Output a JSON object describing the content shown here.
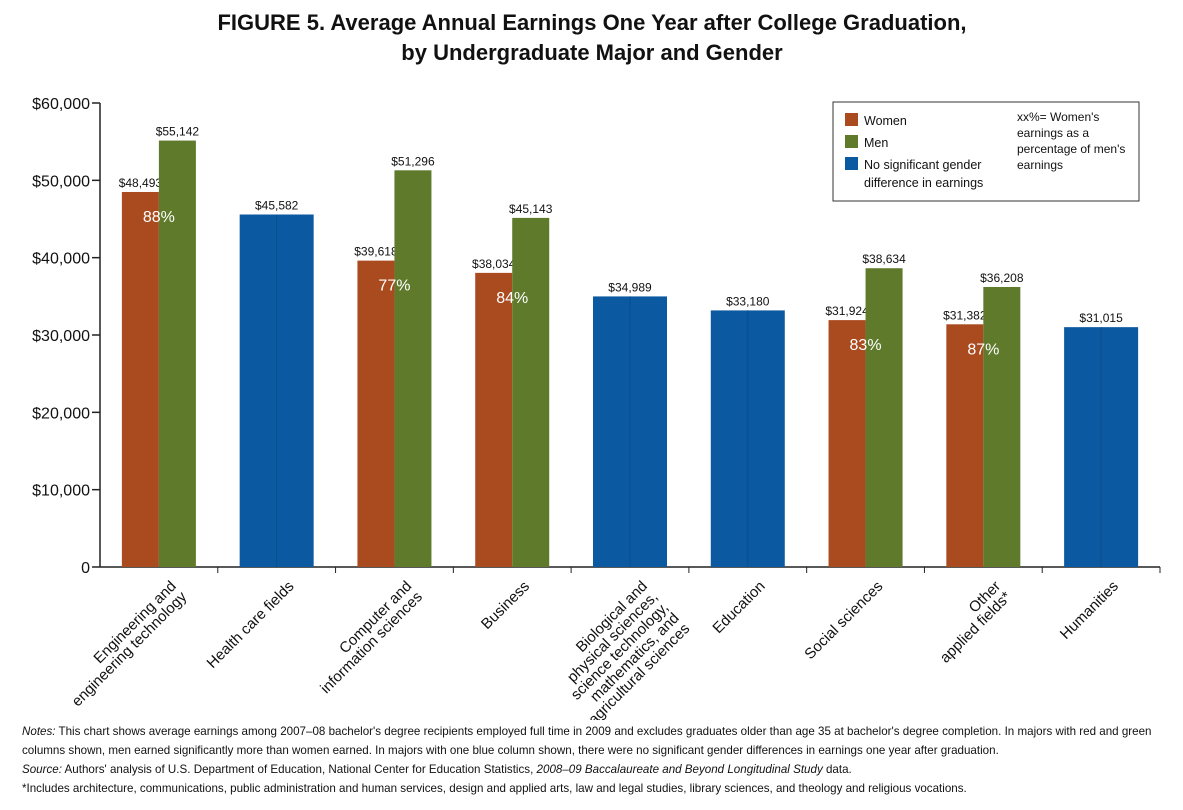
{
  "chart_data": {
    "type": "bar",
    "title": "FIGURE 5. Average Annual Earnings One Year after College Graduation,",
    "subtitle": "by Undergraduate Major and Gender",
    "categories": [
      "Engineering and\nengineering technology",
      "Health care fields",
      "Computer and\ninformation sciences",
      "Business",
      "Biological and\nphysical sciences,\nscience technology,\nmathematics, and\nagricultural sciences",
      "Education",
      "Social sciences",
      "Other\napplied fields*",
      "Humanities"
    ],
    "series": [
      {
        "name": "Women",
        "color": "#a94a1f",
        "values": [
          48493,
          null,
          39618,
          38034,
          null,
          null,
          31924,
          31382,
          null
        ],
        "value_labels": [
          "$48,493",
          null,
          "$39,618",
          "$38,034",
          null,
          null,
          "$31,924",
          "$31,382",
          null
        ]
      },
      {
        "name": "Men",
        "color": "#5f7a2b",
        "values": [
          55142,
          null,
          51296,
          45143,
          null,
          null,
          38634,
          36208,
          null
        ],
        "value_labels": [
          "$55,142",
          null,
          "$51,296",
          "$45,143",
          null,
          null,
          "$38,634",
          "$36,208",
          null
        ]
      },
      {
        "name": "No significant gender\ndifference in earnings",
        "color": "#0b5aa1",
        "values": [
          null,
          45582,
          null,
          null,
          34989,
          33180,
          null,
          null,
          31015
        ],
        "value_labels": [
          null,
          "$45,582",
          null,
          null,
          "$34,989",
          "$33,180",
          null,
          null,
          "$31,015"
        ]
      }
    ],
    "ratio_labels": [
      "88%",
      null,
      "77%",
      "84%",
      null,
      null,
      "83%",
      "87%",
      null
    ],
    "legend_note": "xx%= Women's\nearnings as a\npercentage of men's\nearnings",
    "ylim": [
      0,
      60000
    ],
    "yticks": [
      0,
      {
        "value": 10000,
        "label": "$10,000"
      },
      {
        "value": 20000,
        "label": "$20,000"
      },
      {
        "value": 30000,
        "label": "$30,000"
      },
      {
        "value": 40000,
        "label": "$40,000"
      },
      {
        "value": 50000,
        "label": "$50,000"
      },
      {
        "value": 60000,
        "label": "$60,000"
      }
    ],
    "legend_position": "upper right"
  },
  "notes": {
    "notes_label": "Notes:",
    "notes_text": " This chart shows average earnings among 2007–08 bachelor's degree recipients employed full time in 2009 and excludes graduates older than age 35 at bachelor's degree completion. In majors with red and green columns shown, men earned significantly more than women earned. In majors with one blue column shown, there were no significant gender differences in earnings one year after graduation.",
    "source_label": "Source:",
    "source_text": " Authors' analysis of U.S. Department of Education, National Center for Education Statistics, ",
    "source_title": "2008–09 Baccalaureate and Beyond Longitudinal Study",
    "source_end": " data.",
    "footnote": "*Includes architecture, communications, public administration and human services, design and applied arts, law and legal studies, library sciences, and theology and religious vocations."
  }
}
